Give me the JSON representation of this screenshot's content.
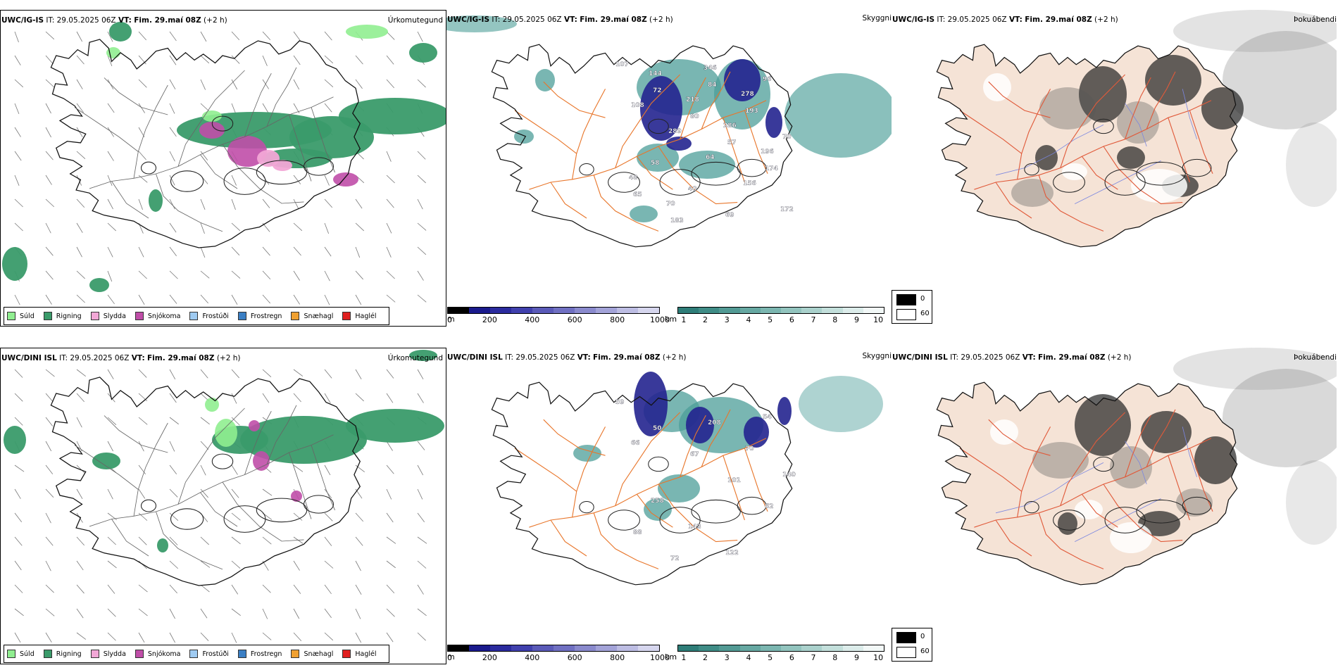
{
  "rows": [
    {
      "model": "UWC/IG-IS",
      "it_label": "IT:",
      "it_value": "29.05.2025 06Z",
      "vt_label": "VT:",
      "vt_value": "Fim. 29.maí 08Z",
      "lead": "(+2 h)",
      "titles": [
        "Úrkomutegund",
        "Skyggni",
        "Þokuábendi"
      ]
    },
    {
      "model": "UWC/DINI ISL",
      "it_label": "IT:",
      "it_value": "29.05.2025 06Z",
      "vt_label": "VT:",
      "vt_value": "Fim. 29.maí 08Z",
      "lead": "(+2 h)",
      "titles": [
        "Úrkomutegund",
        "Skyggni",
        "Þokuábendi"
      ]
    }
  ],
  "precip_legend": [
    {
      "label": "Súld",
      "color": "#90ee90"
    },
    {
      "label": "Rigning",
      "color": "#3a9b6a"
    },
    {
      "label": "Slydda",
      "color": "#f2a7d6"
    },
    {
      "label": "Snjókoma",
      "color": "#c04ea8"
    },
    {
      "label": "Frostúði",
      "color": "#9fcbf2"
    },
    {
      "label": "Frostregn",
      "color": "#3b7fc4"
    },
    {
      "label": "Snæhagl",
      "color": "#f0a030"
    },
    {
      "label": "Haglél",
      "color": "#e02020"
    }
  ],
  "visibility_scale": {
    "m_unit": "m",
    "m_ticks": [
      "0",
      "200",
      "400",
      "600",
      "800",
      "1000"
    ],
    "m_colors": [
      "#000000",
      "#1a1a8c",
      "#2b2b9e",
      "#4040ad",
      "#5a5ab8",
      "#7070c2",
      "#8a8acd",
      "#a3a3d8",
      "#bdbde3",
      "#d6d6ee"
    ],
    "km_unit": "km",
    "km_ticks": [
      "1",
      "2",
      "3",
      "4",
      "5",
      "6",
      "7",
      "8",
      "9",
      "10"
    ],
    "km_colors": [
      "#2e7d78",
      "#3f8c86",
      "#529a94",
      "#66a8a2",
      "#7bb6b0",
      "#92c4be",
      "#aad1cc",
      "#c3dfdb",
      "#dcecea",
      "#f2f8f7"
    ]
  },
  "fog_legend": [
    {
      "label": "0",
      "color": "#000000"
    },
    {
      "label": "60",
      "color": "#ffffff"
    }
  ],
  "map_colors": {
    "rain": "#3a9b6a",
    "drizzle": "#90ee90",
    "snow": "#c04ea8",
    "sleet": "#f2a7d6",
    "fog_land": "#f5e3d6",
    "roads": "#e8762b",
    "fog_roads": "#e05a3a",
    "rivers": "#7a86e0",
    "vis_teal": "#4c9e98",
    "vis_dark": "#23238f"
  },
  "vis_labels_top": [
    "107",
    "72",
    "80",
    "57",
    "174",
    "65",
    "183",
    "84",
    "193",
    "70",
    "58",
    "40",
    "69",
    "96",
    "108",
    "289",
    "64",
    "156",
    "172",
    "144",
    "218",
    "286",
    "196",
    "48",
    "70",
    "346",
    "278"
  ],
  "vis_labels_bottom": [
    "59",
    "50",
    "67",
    "101",
    "62",
    "88",
    "72",
    "208",
    "70",
    "140",
    "258",
    "143",
    "122",
    "54",
    "66"
  ]
}
